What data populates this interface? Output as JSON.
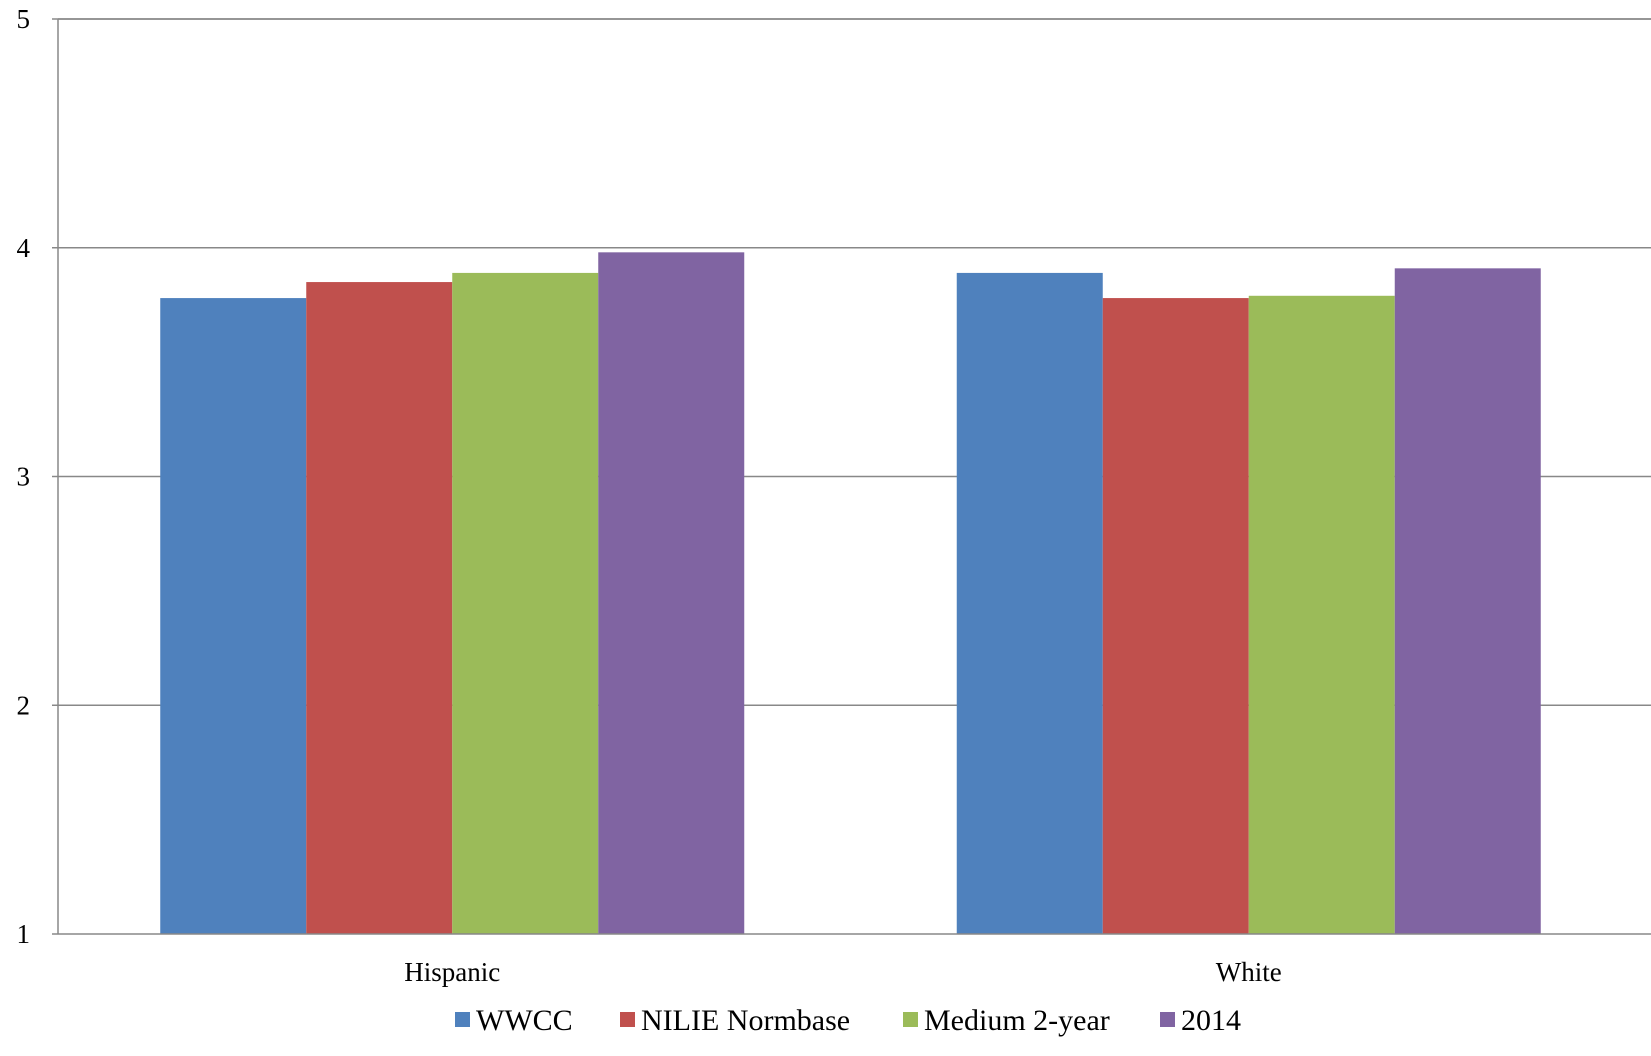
{
  "chart_data": {
    "type": "bar",
    "categories": [
      "Hispanic",
      "White"
    ],
    "series": [
      {
        "name": "WWCC",
        "values": [
          3.78,
          3.89
        ],
        "color": "#4F81BD"
      },
      {
        "name": "NILIE Normbase",
        "values": [
          3.85,
          3.78
        ],
        "color": "#C0504D"
      },
      {
        "name": "Medium 2-year",
        "values": [
          3.89,
          3.79
        ],
        "color": "#9BBB59"
      },
      {
        "name": "2014",
        "values": [
          3.98,
          3.91
        ],
        "color": "#8064A2"
      }
    ],
    "ylim": [
      1,
      5
    ],
    "yticks": [
      "1",
      "2",
      "3",
      "4",
      "5"
    ],
    "grid": true,
    "legend_position": "bottom"
  }
}
